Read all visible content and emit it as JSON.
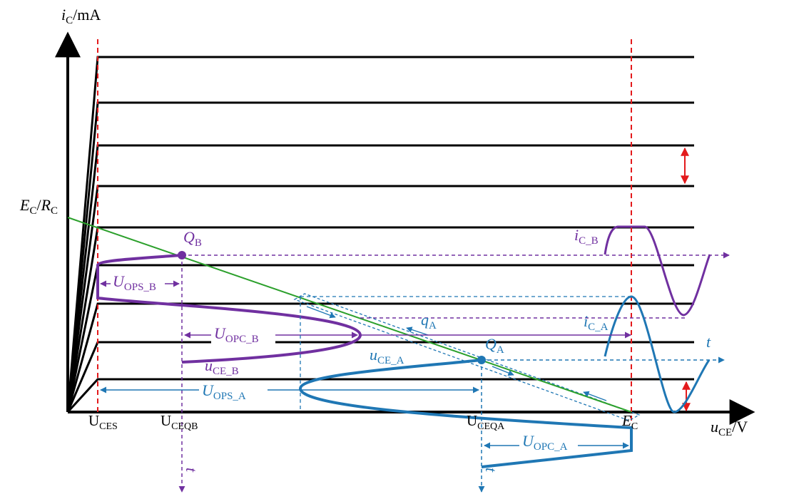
{
  "colors": {
    "axis": "#000000",
    "curves": "#000000",
    "load_line": "#2ca02c",
    "limit": "#e31a1c",
    "point_b": "#7030a0",
    "point_a": "#1f77b4"
  },
  "axes": {
    "y": {
      "symbol": "i",
      "sub": "C",
      "unit": "/mA"
    },
    "x": {
      "symbol": "u",
      "sub": "CE",
      "unit": "/V"
    }
  },
  "load_line_label": {
    "num": "E",
    "num_sub": "C",
    "sep": "/",
    "den": "R",
    "den_sub": "C"
  },
  "x_ticks": {
    "ces": {
      "main": "U",
      "sub": "CES"
    },
    "ceqb": {
      "main": "U",
      "sub": "CEQB"
    },
    "ceqa": {
      "main": "U",
      "sub": "CEQA"
    },
    "ec": {
      "main": "E",
      "sub": "C"
    }
  },
  "point_b": {
    "q": {
      "main": "Q",
      "sub": "B"
    },
    "ic": {
      "main": "i",
      "sub": "C_B"
    },
    "uce": {
      "main": "u",
      "sub": "CE_B"
    },
    "u_ops": {
      "main": "U",
      "sub": "OPS_B"
    },
    "u_opc": {
      "main": "U",
      "sub": "OPC_B"
    },
    "t_label": "t"
  },
  "point_a": {
    "q": {
      "main": "Q",
      "sub": "A"
    },
    "q_small": {
      "main": "q",
      "sub": "A"
    },
    "ic": {
      "main": "i",
      "sub": "C_A"
    },
    "uce": {
      "main": "u",
      "sub": "CE_A"
    },
    "u_ops": {
      "main": "U",
      "sub": "OPS_A"
    },
    "u_opc": {
      "main": "U",
      "sub": "OPC_A"
    },
    "t_label": "t",
    "t_label_down": "t"
  }
}
